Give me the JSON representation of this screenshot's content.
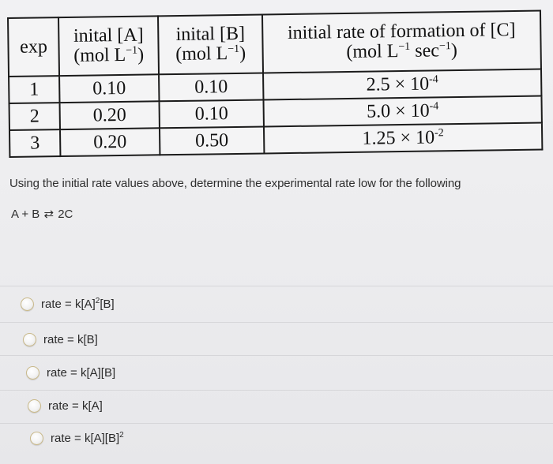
{
  "table": {
    "headers": {
      "exp": "exp",
      "a_line1": "inital [A]",
      "a_line2": "(mol L",
      "b_line1": "inital [B]",
      "b_line2": "(mol L",
      "rate_line1": "initial rate of formation of [C]",
      "rate_line2_a": "(mol L",
      "rate_line2_b": " sec",
      "neg_one": "−1",
      "close_paren": ")"
    },
    "rows": [
      {
        "exp": "1",
        "a": "0.10",
        "b": "0.10",
        "rate_mantissa": "2.5 × 10",
        "rate_exp": "-4"
      },
      {
        "exp": "2",
        "a": "0.20",
        "b": "0.10",
        "rate_mantissa": "5.0 × 10",
        "rate_exp": "-4"
      },
      {
        "exp": "3",
        "a": "0.20",
        "b": "0.50",
        "rate_mantissa": "1.25 × 10",
        "rate_exp": "-2"
      }
    ]
  },
  "question": "Using the initial rate values above, determine the experimental rate low for the following",
  "reaction": {
    "left": "A + B",
    "arrows": "⇄",
    "right": "2C"
  },
  "options": [
    {
      "pre": "rate = k[A]",
      "sup": "2",
      "post": "[B]"
    },
    {
      "pre": "rate = k[B]",
      "sup": "",
      "post": ""
    },
    {
      "pre": "rate = k[A][B]",
      "sup": "",
      "post": ""
    },
    {
      "pre": "rate = k[A]",
      "sup": "",
      "post": ""
    },
    {
      "pre": "rate = k[A][B]",
      "sup": "2",
      "post": ""
    }
  ],
  "colors": {
    "background": "#ededef",
    "table_border": "#1b1b1b",
    "radio_border": "#c9b98a"
  }
}
